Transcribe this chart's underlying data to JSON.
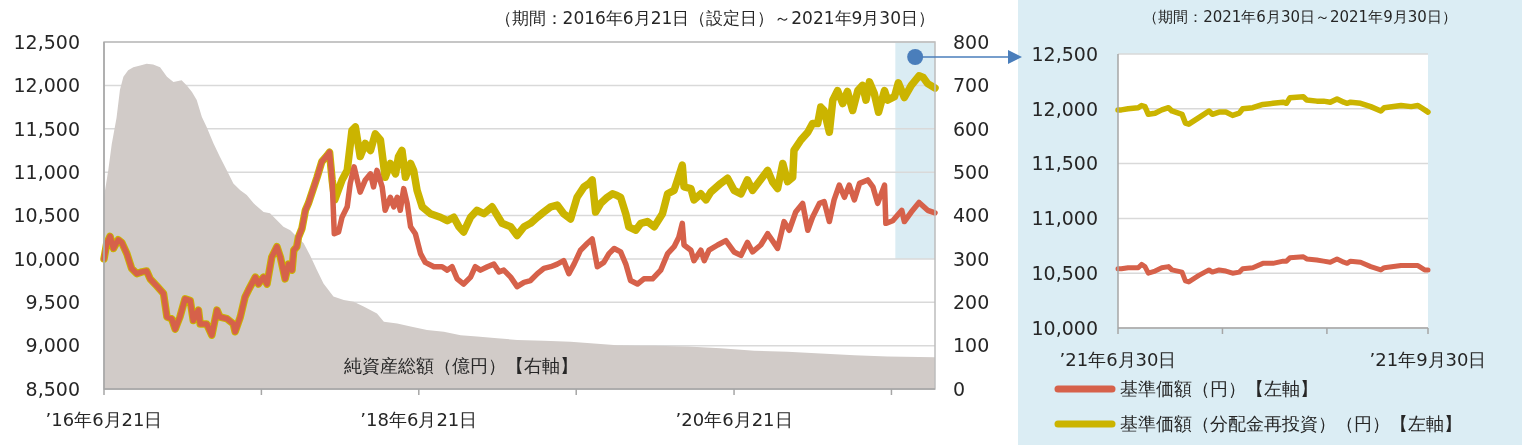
{
  "chart_data": [
    {
      "type": "line",
      "title": "（期間：2016年6月21日（設定日）～2021年9月30日）",
      "xlim": [
        "2016-06-21",
        "2021-09-30"
      ],
      "xticks": [
        {
          "value": "2016-06-21",
          "label": "’16年6月21日"
        },
        {
          "value": "2017-06-21",
          "label": null
        },
        {
          "value": "2018-06-21",
          "label": "’18年6月21日"
        },
        {
          "value": "2019-06-21",
          "label": null
        },
        {
          "value": "2020-06-21",
          "label": "’20年6月21日"
        },
        {
          "value": "2021-06-21",
          "label": null
        }
      ],
      "ylim": [
        8500,
        12500
      ],
      "yticks": [
        {
          "value": 8500,
          "label": "8,500"
        },
        {
          "value": 9000,
          "label": "9,000"
        },
        {
          "value": 9500,
          "label": "9,500"
        },
        {
          "value": 10000,
          "label": "10,000"
        },
        {
          "value": 10500,
          "label": "10,500"
        },
        {
          "value": 11000,
          "label": "11,000"
        },
        {
          "value": 11500,
          "label": "11,500"
        },
        {
          "value": 12000,
          "label": "12,000"
        },
        {
          "value": 12500,
          "label": "12,500"
        }
      ],
      "y2lim": [
        0,
        800
      ],
      "y2ticks": [
        0,
        100,
        200,
        300,
        400,
        500,
        600,
        700,
        800
      ],
      "grid": "y",
      "bands": [
        {
          "axis": "x",
          "from": "2021-06-30",
          "to": "2021-09-30",
          "color": "#daecf3"
        }
      ],
      "series": [
        {
          "name": "純資産総額（億円）【右軸】",
          "type": "area",
          "axis": "y2",
          "color": "#d1cbc8",
          "x": [
            "2016-06-21",
            "2016-07-01",
            "2016-07-09",
            "2016-07-20",
            "2016-07-28",
            "2016-08-05",
            "2016-08-16",
            "2016-08-28",
            "2016-09-13",
            "2016-09-28",
            "2016-10-13",
            "2016-10-29",
            "2016-11-14",
            "2016-11-29",
            "2016-12-18",
            "2016-12-30",
            "2017-01-11",
            "2017-01-22",
            "2017-02-03",
            "2017-02-14",
            "2017-03-02",
            "2017-03-17",
            "2017-04-02",
            "2017-04-17",
            "2017-05-03",
            "2017-05-18",
            "2017-06-03",
            "2017-06-26",
            "2017-07-11",
            "2017-07-27",
            "2017-08-11",
            "2017-08-27",
            "2017-09-11",
            "2017-09-27",
            "2017-10-12",
            "2017-10-28",
            "2017-11-12",
            "2017-12-05",
            "2017-12-29",
            "2018-01-21",
            "2018-02-13",
            "2018-03-16",
            "2018-04-01",
            "2018-05-02",
            "2018-06-02",
            "2018-07-10",
            "2018-08-18",
            "2018-09-26",
            "2018-11-03",
            "2018-12-20",
            "2019-02-04",
            "2019-04-07",
            "2019-06-08",
            "2019-08-01",
            "2019-09-24",
            "2019-11-18",
            "2019-12-19",
            "2020-03-05",
            "2020-05-21",
            "2020-08-07",
            "2020-10-23",
            "2021-01-08",
            "2021-03-27",
            "2021-06-12",
            "2021-09-30"
          ],
          "values": [
            443,
            505,
            565,
            625,
            690,
            720,
            735,
            742,
            746,
            750,
            748,
            742,
            720,
            708,
            712,
            700,
            685,
            666,
            627,
            604,
            566,
            535,
            504,
            474,
            458,
            447,
            428,
            408,
            405,
            389,
            374,
            366,
            351,
            336,
            308,
            274,
            243,
            213,
            205,
            201,
            190,
            174,
            155,
            151,
            144,
            136,
            132,
            124,
            121,
            117,
            113,
            111,
            109,
            105,
            101,
            100,
            100,
            98,
            94,
            88,
            86,
            82,
            78,
            75,
            73
          ]
        },
        {
          "type": "line",
          "color": "#d6614a",
          "x": [
            "2016-06-21",
            "2016-06-27",
            "2016-07-05",
            "2016-07-13",
            "2016-07-24",
            "2016-08-01",
            "2016-08-13",
            "2016-08-24",
            "2016-09-05",
            "2016-09-17",
            "2016-09-28",
            "2016-10-06",
            "2016-10-21",
            "2016-11-06",
            "2016-11-14",
            "2016-11-25",
            "2016-12-03",
            "2016-12-14",
            "2016-12-26",
            "2017-01-07",
            "2017-01-14",
            "2017-01-26",
            "2017-01-30",
            "2017-02-14",
            "2017-02-26",
            "2017-03-10",
            "2017-03-17",
            "2017-04-02",
            "2017-04-17",
            "2017-04-21",
            "2017-05-03",
            "2017-05-14",
            "2017-05-22",
            "2017-06-07",
            "2017-06-14",
            "2017-06-26",
            "2017-07-04",
            "2017-07-15",
            "2017-07-27",
            "2017-08-04",
            "2017-08-15",
            "2017-08-23",
            "2017-08-31",
            "2017-09-04",
            "2017-09-11",
            "2017-09-15",
            "2017-09-23",
            "2017-10-01",
            "2017-10-08",
            "2017-10-28",
            "2017-11-08",
            "2017-11-20",
            "2017-11-26",
            "2017-12-02",
            "2017-12-07",
            "2017-12-17",
            "2017-12-25",
            "2018-01-06",
            "2018-01-13",
            "2018-01-22",
            "2018-02-05",
            "2018-02-17",
            "2018-03-01",
            "2018-03-08",
            "2018-03-16",
            "2018-03-28",
            "2018-04-04",
            "2018-04-16",
            "2018-04-24",
            "2018-05-02",
            "2018-05-09",
            "2018-05-17",
            "2018-05-25",
            "2018-06-02",
            "2018-06-13",
            "2018-06-25",
            "2018-07-06",
            "2018-07-26",
            "2018-08-14",
            "2018-08-26",
            "2018-09-06",
            "2018-09-18",
            "2018-10-03",
            "2018-10-19",
            "2018-10-30",
            "2018-11-11",
            "2018-11-27",
            "2018-12-12",
            "2018-12-24",
            "2019-01-04",
            "2019-01-20",
            "2019-02-04",
            "2019-02-20",
            "2019-03-07",
            "2019-03-23",
            "2019-04-07",
            "2019-04-23",
            "2019-05-08",
            "2019-05-23",
            "2019-06-04",
            "2019-06-16",
            "2019-07-01",
            "2019-07-17",
            "2019-07-28",
            "2019-08-09",
            "2019-08-24",
            "2019-09-05",
            "2019-09-17",
            "2019-10-02",
            "2019-10-14",
            "2019-10-25",
            "2019-11-10",
            "2019-11-25",
            "2019-12-15",
            "2020-01-03",
            "2020-01-19",
            "2020-02-03",
            "2020-02-14",
            "2020-02-22",
            "2020-02-26",
            "2020-03-13",
            "2020-03-20",
            "2020-04-05",
            "2020-04-13",
            "2020-04-24",
            "2020-05-14",
            "2020-06-02",
            "2020-06-21",
            "2020-07-07",
            "2020-07-22",
            "2020-08-03",
            "2020-08-22",
            "2020-09-07",
            "2020-09-18",
            "2020-09-30",
            "2020-10-15",
            "2020-10-27",
            "2020-11-11",
            "2020-11-27",
            "2020-12-09",
            "2020-12-20",
            "2021-01-05",
            "2021-01-16",
            "2021-01-28",
            "2021-02-08",
            "2021-02-20",
            "2021-03-04",
            "2021-03-15",
            "2021-03-27",
            "2021-04-08",
            "2021-04-27",
            "2021-05-09",
            "2021-05-20",
            "2021-06-05",
            "2021-06-08",
            "2021-06-24",
            "2021-07-15",
            "2021-07-21",
            "2021-08-06",
            "2021-08-24",
            "2021-09-13",
            "2021-09-30"
          ],
          "values": [
            10000,
            10170,
            10260,
            10120,
            10220,
            10190,
            10060,
            9890,
            9830,
            9850,
            9860,
            9770,
            9690,
            9600,
            9330,
            9310,
            9190,
            9330,
            9540,
            9520,
            9290,
            9410,
            9250,
            9250,
            9120,
            9410,
            9330,
            9310,
            9250,
            9160,
            9330,
            9560,
            9640,
            9790,
            9710,
            9790,
            9710,
            10020,
            10140,
            10020,
            9770,
            9940,
            9870,
            10100,
            10140,
            10250,
            10350,
            10560,
            10640,
            10940,
            11120,
            11190,
            11230,
            10910,
            10290,
            10310,
            10480,
            10600,
            10870,
            11060,
            10770,
            10910,
            10980,
            10830,
            11020,
            10830,
            10560,
            10710,
            10600,
            10710,
            10560,
            10810,
            10640,
            10370,
            10290,
            10060,
            9960,
            9910,
            9910,
            9870,
            9910,
            9770,
            9710,
            9790,
            9910,
            9870,
            9910,
            9940,
            9850,
            9870,
            9790,
            9680,
            9730,
            9750,
            9830,
            9890,
            9910,
            9940,
            9980,
            9830,
            9940,
            10100,
            10180,
            10230,
            9910,
            9960,
            10060,
            10120,
            10080,
            9940,
            9750,
            9710,
            9770,
            9770,
            9870,
            10060,
            10140,
            10250,
            10410,
            10160,
            10100,
            9980,
            10100,
            9980,
            10100,
            10160,
            10210,
            10080,
            10040,
            10190,
            10080,
            10160,
            10290,
            10210,
            10120,
            10430,
            10330,
            10540,
            10640,
            10330,
            10480,
            10640,
            10660,
            10430,
            10680,
            10850,
            10710,
            10850,
            10680,
            10870,
            10910,
            10830,
            10640,
            10850,
            10410,
            10440,
            10560,
            10430,
            10540,
            10650,
            10560,
            10530
          ]
        },
        {
          "type": "line",
          "color": "#cbb400",
          "x": [
            "2016-06-21",
            "2016-06-27",
            "2016-07-05",
            "2016-07-13",
            "2016-07-24",
            "2016-08-01",
            "2016-08-13",
            "2016-08-24",
            "2016-09-05",
            "2016-09-17",
            "2016-09-28",
            "2016-10-06",
            "2016-10-21",
            "2016-11-06",
            "2016-11-14",
            "2016-11-25",
            "2016-12-03",
            "2016-12-14",
            "2016-12-26",
            "2017-01-07",
            "2017-01-14",
            "2017-01-26",
            "2017-01-30",
            "2017-02-14",
            "2017-02-26",
            "2017-03-10",
            "2017-03-17",
            "2017-04-02",
            "2017-04-17",
            "2017-04-21",
            "2017-05-03",
            "2017-05-14",
            "2017-05-22",
            "2017-06-07",
            "2017-06-14",
            "2017-06-26",
            "2017-07-04",
            "2017-07-15",
            "2017-07-27",
            "2017-08-04",
            "2017-08-15",
            "2017-08-23",
            "2017-08-31",
            "2017-09-04",
            "2017-09-11",
            "2017-09-15",
            "2017-09-23",
            "2017-10-01",
            "2017-10-08",
            "2017-10-28",
            "2017-11-08",
            "2017-11-20",
            "2017-11-26",
            "2017-12-02",
            "2017-12-08",
            "2017-12-25",
            "2018-01-06",
            "2018-01-17",
            "2018-01-25",
            "2018-02-05",
            "2018-02-17",
            "2018-03-01",
            "2018-03-12",
            "2018-03-24",
            "2018-04-04",
            "2018-04-16",
            "2018-04-28",
            "2018-05-05",
            "2018-05-13",
            "2018-05-21",
            "2018-06-02",
            "2018-06-09",
            "2018-06-17",
            "2018-06-29",
            "2018-07-18",
            "2018-08-10",
            "2018-08-26",
            "2018-09-10",
            "2018-09-22",
            "2018-10-03",
            "2018-10-19",
            "2018-11-03",
            "2018-11-19",
            "2018-12-08",
            "2018-12-20",
            "2018-12-31",
            "2019-01-20",
            "2019-02-04",
            "2019-02-20",
            "2019-03-07",
            "2019-03-23",
            "2019-04-07",
            "2019-04-23",
            "2019-05-08",
            "2019-05-23",
            "2019-06-08",
            "2019-06-23",
            "2019-07-09",
            "2019-07-21",
            "2019-07-28",
            "2019-08-05",
            "2019-08-17",
            "2019-09-01",
            "2019-09-13",
            "2019-09-24",
            "2019-10-02",
            "2019-10-14",
            "2019-10-21",
            "2019-11-06",
            "2019-11-18",
            "2019-12-03",
            "2019-12-19",
            "2020-01-07",
            "2020-01-19",
            "2020-02-03",
            "2020-02-11",
            "2020-02-22",
            "2020-02-26",
            "2020-03-13",
            "2020-03-20",
            "2020-04-05",
            "2020-04-17",
            "2020-04-28",
            "2020-05-21",
            "2020-06-06",
            "2020-06-21",
            "2020-07-07",
            "2020-07-22",
            "2020-08-03",
            "2020-08-18",
            "2020-09-07",
            "2020-09-18",
            "2020-09-30",
            "2020-10-12",
            "2020-10-23",
            "2020-11-04",
            "2020-11-07",
            "2020-11-23",
            "2020-12-09",
            "2020-12-20",
            "2021-01-01",
            "2021-01-08",
            "2021-01-16",
            "2021-01-28",
            "2021-02-05",
            "2021-02-16",
            "2021-02-28",
            "2021-03-11",
            "2021-03-23",
            "2021-04-04",
            "2021-04-15",
            "2021-04-23",
            "2021-05-01",
            "2021-05-12",
            "2021-05-22",
            "2021-06-05",
            "2021-06-12",
            "2021-06-28",
            "2021-07-07",
            "2021-07-21",
            "2021-08-06",
            "2021-08-24",
            "2021-09-03",
            "2021-09-13",
            "2021-09-30"
          ],
          "values": [
            10000,
            10170,
            10260,
            10120,
            10220,
            10190,
            10060,
            9890,
            9830,
            9850,
            9860,
            9770,
            9690,
            9600,
            9330,
            9310,
            9190,
            9330,
            9540,
            9520,
            9290,
            9410,
            9250,
            9250,
            9120,
            9410,
            9330,
            9310,
            9250,
            9160,
            9330,
            9560,
            9640,
            9790,
            9710,
            9790,
            9710,
            10020,
            10140,
            10020,
            9770,
            9940,
            9870,
            10100,
            10140,
            10250,
            10350,
            10560,
            10640,
            10940,
            11120,
            11190,
            11230,
            10910,
            10680,
            10910,
            11020,
            11480,
            11520,
            11180,
            11330,
            11250,
            11440,
            11370,
            10940,
            11100,
            10980,
            11180,
            11250,
            10940,
            11100,
            11020,
            10790,
            10600,
            10520,
            10480,
            10440,
            10480,
            10370,
            10310,
            10480,
            10560,
            10520,
            10600,
            10500,
            10410,
            10370,
            10270,
            10370,
            10410,
            10480,
            10540,
            10600,
            10620,
            10520,
            10460,
            10710,
            10830,
            10870,
            10910,
            10540,
            10640,
            10710,
            10750,
            10730,
            10710,
            10520,
            10370,
            10330,
            10410,
            10430,
            10370,
            10520,
            10750,
            10790,
            10910,
            11080,
            10830,
            10810,
            10680,
            10750,
            10680,
            10770,
            10870,
            10930,
            10790,
            10750,
            10910,
            10790,
            10890,
            11020,
            10890,
            10810,
            11100,
            10890,
            10940,
            11250,
            11370,
            11460,
            11560,
            11560,
            11750,
            11710,
            11460,
            11830,
            11940,
            11790,
            11930,
            11710,
            11940,
            12000,
            11830,
            12040,
            11910,
            11690,
            11940,
            11830,
            11870,
            12030,
            11860,
            12000,
            12110,
            12090,
            12020,
            11970
          ]
        }
      ]
    },
    {
      "type": "line",
      "title": "（期間：2021年6月30日～2021年9月30日）",
      "x": [
        "2021-06-30",
        "2021-07-01",
        "2021-07-03",
        "2021-07-06",
        "2021-07-07",
        "2021-07-08",
        "2021-07-09",
        "2021-07-11",
        "2021-07-13",
        "2021-07-15",
        "2021-07-16",
        "2021-07-19",
        "2021-07-20",
        "2021-07-21",
        "2021-07-24",
        "2021-07-27",
        "2021-07-28",
        "2021-07-30",
        "2021-08-01",
        "2021-08-03",
        "2021-08-05",
        "2021-08-06",
        "2021-08-09",
        "2021-08-12",
        "2021-08-15",
        "2021-08-18",
        "2021-08-19",
        "2021-08-20",
        "2021-08-24",
        "2021-08-25",
        "2021-08-28",
        "2021-08-30",
        "2021-09-01",
        "2021-09-03",
        "2021-09-05",
        "2021-09-06",
        "2021-09-07",
        "2021-09-10",
        "2021-09-13",
        "2021-09-16",
        "2021-09-17",
        "2021-09-22",
        "2021-09-25",
        "2021-09-27",
        "2021-09-29",
        "2021-09-30"
      ],
      "xlim": [
        "2021-06-30",
        "2021-09-30"
      ],
      "xticks": [
        {
          "value": "2021-06-30",
          "label": "’21年6月30日"
        },
        {
          "value": "2021-07-31",
          "label": null
        },
        {
          "value": "2021-08-31",
          "label": null
        },
        {
          "value": "2021-09-30",
          "label": "’21年9月30日"
        }
      ],
      "ylim": [
        10000,
        12500
      ],
      "yticks": [
        {
          "value": 10000,
          "label": "10,000"
        },
        {
          "value": 10500,
          "label": "10,500"
        },
        {
          "value": 11000,
          "label": "11,000"
        },
        {
          "value": 11500,
          "label": "11,500"
        },
        {
          "value": 12000,
          "label": "12,000"
        },
        {
          "value": 12500,
          "label": "12,500"
        }
      ],
      "grid": "y",
      "legend": "bottom",
      "series": [
        {
          "name": "基準価額（円）【左軸】",
          "color": "#d6614a",
          "values": [
            10540,
            10540,
            10550,
            10550,
            10580,
            10560,
            10500,
            10520,
            10550,
            10560,
            10530,
            10510,
            10430,
            10420,
            10480,
            10530,
            10510,
            10530,
            10520,
            10500,
            10510,
            10540,
            10550,
            10590,
            10590,
            10610,
            10610,
            10640,
            10650,
            10630,
            10620,
            10610,
            10600,
            10630,
            10600,
            10590,
            10610,
            10600,
            10560,
            10530,
            10550,
            10570,
            10570,
            10570,
            10530,
            10530
          ]
        },
        {
          "name": "基準価額（分配金再投資）（円）【左軸】",
          "color": "#cbb400",
          "values": [
            11990,
            11990,
            12000,
            12010,
            12030,
            12020,
            11950,
            11960,
            11990,
            12010,
            11980,
            11950,
            11870,
            11860,
            11920,
            11980,
            11950,
            11970,
            11970,
            11940,
            11960,
            12000,
            12010,
            12040,
            12050,
            12060,
            12050,
            12100,
            12110,
            12080,
            12070,
            12070,
            12060,
            12090,
            12060,
            12050,
            12060,
            12050,
            12020,
            11980,
            12010,
            12030,
            12020,
            12030,
            11990,
            11970
          ]
        }
      ]
    }
  ]
}
